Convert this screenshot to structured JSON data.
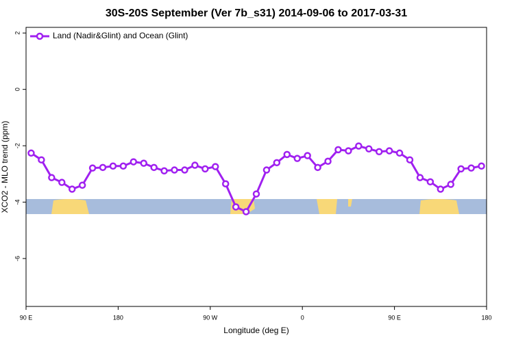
{
  "chart_data": {
    "type": "line",
    "title": "30S-20S September (Ver 7b_s31)   2014-09-06 to 2017-03-31",
    "x_label": "Longitude (deg E)",
    "y_label": "XCO2 - MLO trend (ppm)",
    "x": [
      95,
      105,
      115,
      125,
      135,
      145,
      155,
      165,
      175,
      185,
      195,
      205,
      215,
      225,
      235,
      245,
      255,
      265,
      275,
      285,
      295,
      305,
      315,
      325,
      335,
      345,
      355,
      365,
      375,
      385,
      395,
      405,
      415,
      425,
      435,
      445,
      455,
      465,
      475,
      485,
      495,
      505,
      515,
      525,
      535
    ],
    "series": [
      {
        "name": "Land (Nadir&Glint) and Ocean (Glint)",
        "color": "#a020f0",
        "values": [
          -2.26,
          -2.5,
          -3.13,
          -3.3,
          -3.54,
          -3.4,
          -2.79,
          -2.77,
          -2.72,
          -2.72,
          -2.57,
          -2.62,
          -2.77,
          -2.89,
          -2.86,
          -2.86,
          -2.69,
          -2.82,
          -2.74,
          -3.35,
          -4.17,
          -4.34,
          -3.71,
          -2.86,
          -2.6,
          -2.31,
          -2.45,
          -2.35,
          -2.77,
          -2.55,
          -2.14,
          -2.18,
          -2.01,
          -2.11,
          -2.21,
          -2.18,
          -2.26,
          -2.5,
          -3.13,
          -3.28,
          -3.54,
          -3.37,
          -2.82,
          -2.79,
          -2.72
        ]
      }
    ],
    "xlim": [
      90,
      540
    ],
    "xticks": [
      {
        "value": 90,
        "label": "90 E"
      },
      180,
      {
        "value": 270,
        "label": "90 W"
      },
      {
        "value": 360,
        "label": "0"
      },
      {
        "value": 450,
        "label": "90 E"
      },
      {
        "value": 540,
        "label": "180"
      }
    ],
    "ylim": [
      -7.7,
      2.2
    ],
    "yticks": [
      2,
      0,
      -2,
      -4,
      -6
    ],
    "legend": "top-left"
  }
}
